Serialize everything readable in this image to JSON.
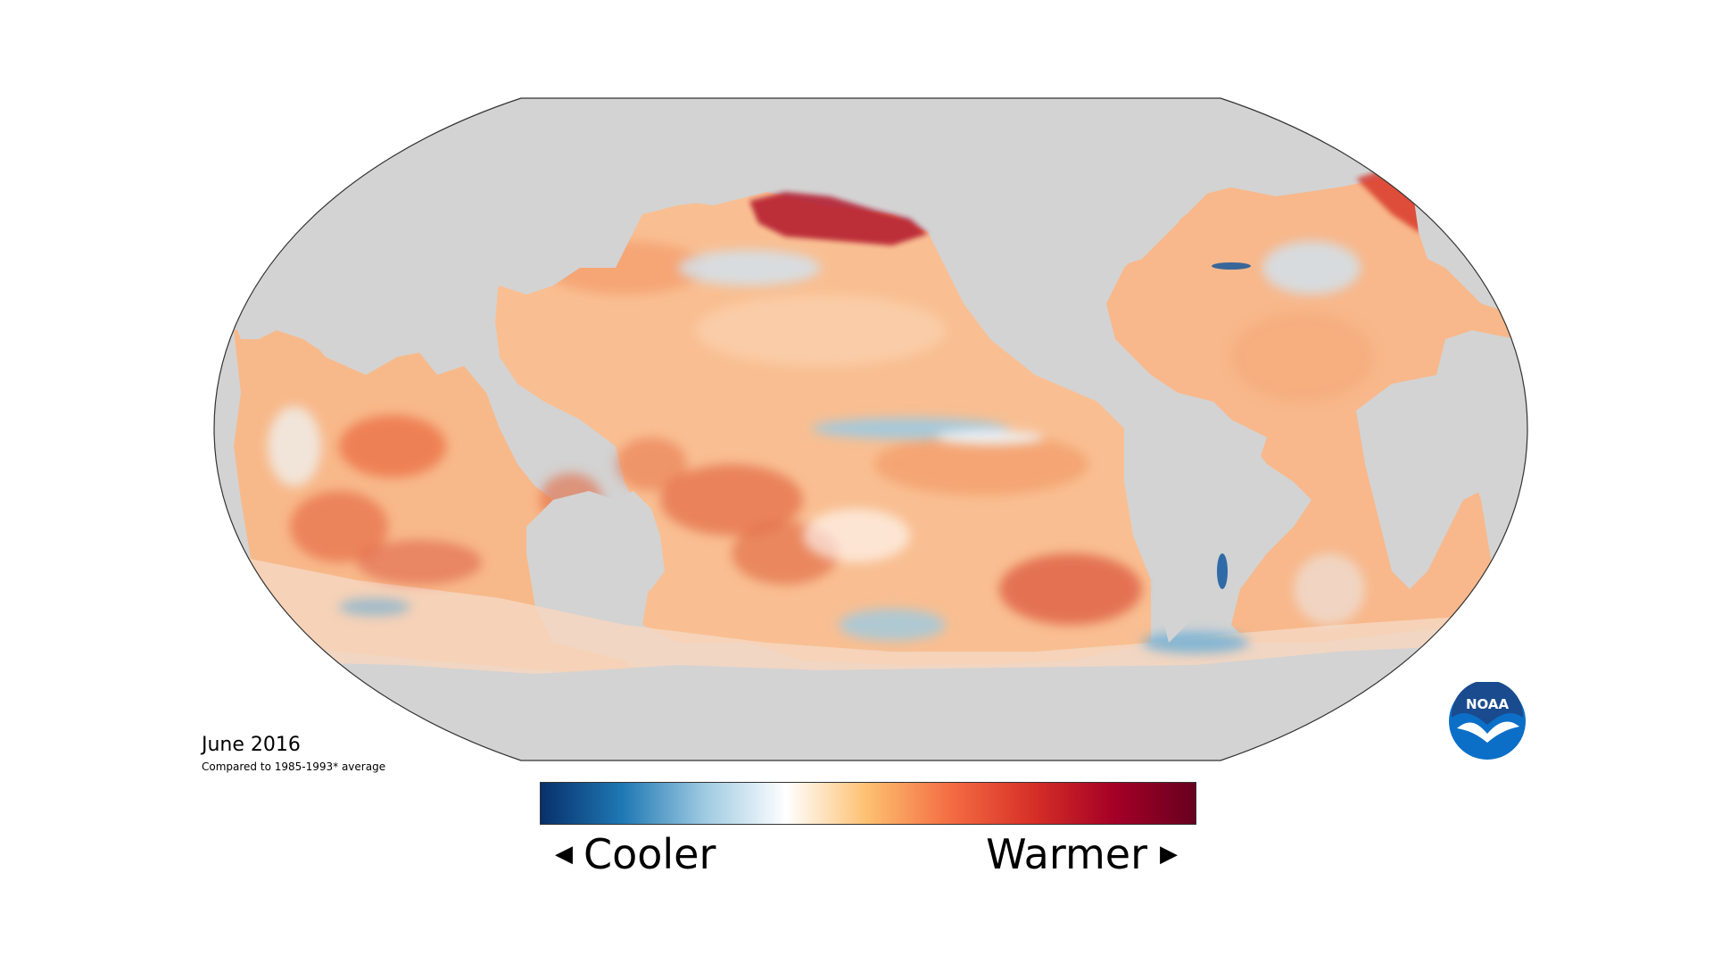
{
  "map": {
    "title": "June 2016",
    "subtitle": "Compared to 1985-1993* average",
    "projection": "robinson",
    "land_color": "#d3d3d3",
    "outline_color": "#333333"
  },
  "legend": {
    "cooler_label": "Cooler",
    "warmer_label": "Warmer",
    "left_arrow_icon": "triangle-left-icon",
    "right_arrow_icon": "triangle-right-icon",
    "colors": [
      "#08306b",
      "#1f78b4",
      "#9ecae1",
      "#ffffff",
      "#fdbf6f",
      "#f46d43",
      "#d73027",
      "#a50026",
      "#67001f"
    ]
  },
  "logo": {
    "text": "NOAA",
    "colors": {
      "outer": "#0b6fc8",
      "inner": "#1a4b8f",
      "white": "#ffffff"
    }
  }
}
